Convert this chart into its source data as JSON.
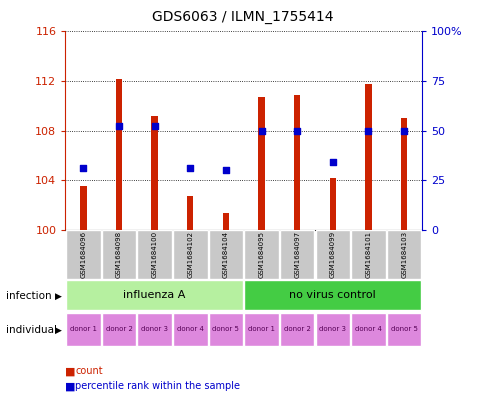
{
  "title": "GDS6063 / ILMN_1755414",
  "samples": [
    "GSM1684096",
    "GSM1684098",
    "GSM1684100",
    "GSM1684102",
    "GSM1684104",
    "GSM1684095",
    "GSM1684097",
    "GSM1684099",
    "GSM1684101",
    "GSM1684103"
  ],
  "bar_values": [
    103.5,
    112.2,
    109.2,
    102.7,
    101.4,
    110.7,
    110.9,
    104.2,
    111.8,
    109.0
  ],
  "percentile_values_mapped": [
    105.0,
    108.4,
    108.4,
    105.0,
    104.8,
    108.0,
    108.0,
    105.5,
    108.0,
    108.0
  ],
  "ylim_left": [
    100,
    116
  ],
  "ylim_right": [
    0,
    100
  ],
  "yticks_left": [
    100,
    104,
    108,
    112,
    116
  ],
  "ytick_labels_left": [
    "100",
    "104",
    "108",
    "112",
    "116"
  ],
  "yticks_right": [
    0,
    25,
    50,
    75,
    100
  ],
  "ytick_labels_right": [
    "0",
    "25",
    "50",
    "75",
    "100%"
  ],
  "infection_groups": [
    {
      "label": "influenza A",
      "start": 0,
      "end": 5,
      "color": "#b6f0a0"
    },
    {
      "label": "no virus control",
      "start": 5,
      "end": 10,
      "color": "#44cc44"
    }
  ],
  "individual_labels": [
    "donor 1",
    "donor 2",
    "donor 3",
    "donor 4",
    "donor 5",
    "donor 1",
    "donor 2",
    "donor 3",
    "donor 4",
    "donor 5"
  ],
  "individual_color": "#dd88dd",
  "bar_color": "#cc2200",
  "dot_color": "#0000cc",
  "left_tick_color": "#cc2200",
  "right_tick_color": "#0000cc",
  "sample_bg_color": "#c8c8c8",
  "legend_items": [
    {
      "label": "count",
      "color": "#cc2200"
    },
    {
      "label": "percentile rank within the sample",
      "color": "#0000cc"
    }
  ]
}
